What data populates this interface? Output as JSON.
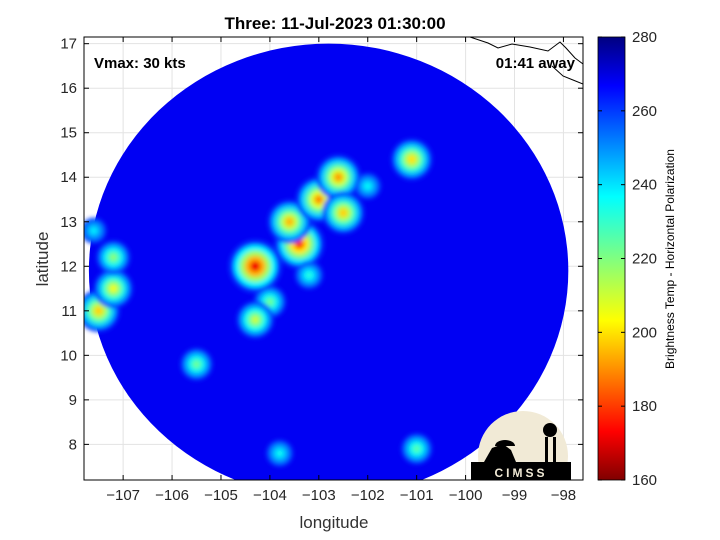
{
  "chart_data": {
    "type": "heatmap",
    "title": "Three: 11-Jul-2023 01:30:00",
    "xlabel": "longitude",
    "ylabel": "latitude",
    "xlim": [
      -107.8,
      -97.6
    ],
    "ylim": [
      7.2,
      17.15
    ],
    "x_ticks": [
      -107,
      -106,
      -105,
      -104,
      -103,
      -102,
      -101,
      -100,
      -99,
      -98
    ],
    "y_ticks": [
      8,
      9,
      10,
      11,
      12,
      13,
      14,
      15,
      16,
      17
    ],
    "grid": true,
    "annotations": {
      "vmax": "Vmax: 30 kts",
      "time_away": "01:41 away"
    },
    "colorbar": {
      "label": "Brightness Temp - Horizontal Polarization",
      "range": [
        160,
        280
      ],
      "ticks": [
        160,
        180,
        200,
        220,
        240,
        260,
        280
      ],
      "colormap": "jet"
    },
    "swath": {
      "center_lon": -102.8,
      "center_lat": 11.9,
      "radius_lon": 4.9,
      "radius_lat": 5.1,
      "background_temp": 268
    },
    "features": [
      {
        "lon": -104.3,
        "lat": 12.0,
        "temp": 172
      },
      {
        "lon": -103.4,
        "lat": 12.5,
        "temp": 180
      },
      {
        "lon": -103.6,
        "lat": 13.0,
        "temp": 195
      },
      {
        "lon": -103.0,
        "lat": 13.5,
        "temp": 190
      },
      {
        "lon": -102.6,
        "lat": 14.0,
        "temp": 192
      },
      {
        "lon": -102.5,
        "lat": 13.2,
        "temp": 198
      },
      {
        "lon": -104.0,
        "lat": 11.2,
        "temp": 222
      },
      {
        "lon": -104.3,
        "lat": 10.8,
        "temp": 210
      },
      {
        "lon": -103.2,
        "lat": 11.8,
        "temp": 232
      },
      {
        "lon": -101.1,
        "lat": 14.4,
        "temp": 200
      },
      {
        "lon": -102.0,
        "lat": 13.8,
        "temp": 236
      },
      {
        "lon": -107.5,
        "lat": 11.0,
        "temp": 198
      },
      {
        "lon": -107.2,
        "lat": 11.5,
        "temp": 205
      },
      {
        "lon": -107.2,
        "lat": 12.2,
        "temp": 218
      },
      {
        "lon": -107.6,
        "lat": 12.8,
        "temp": 238
      },
      {
        "lon": -105.5,
        "lat": 9.8,
        "temp": 222
      },
      {
        "lon": -101.0,
        "lat": 7.9,
        "temp": 225
      },
      {
        "lon": -103.8,
        "lat": 7.8,
        "temp": 235
      }
    ]
  },
  "logo": {
    "text": "CIMSS"
  }
}
